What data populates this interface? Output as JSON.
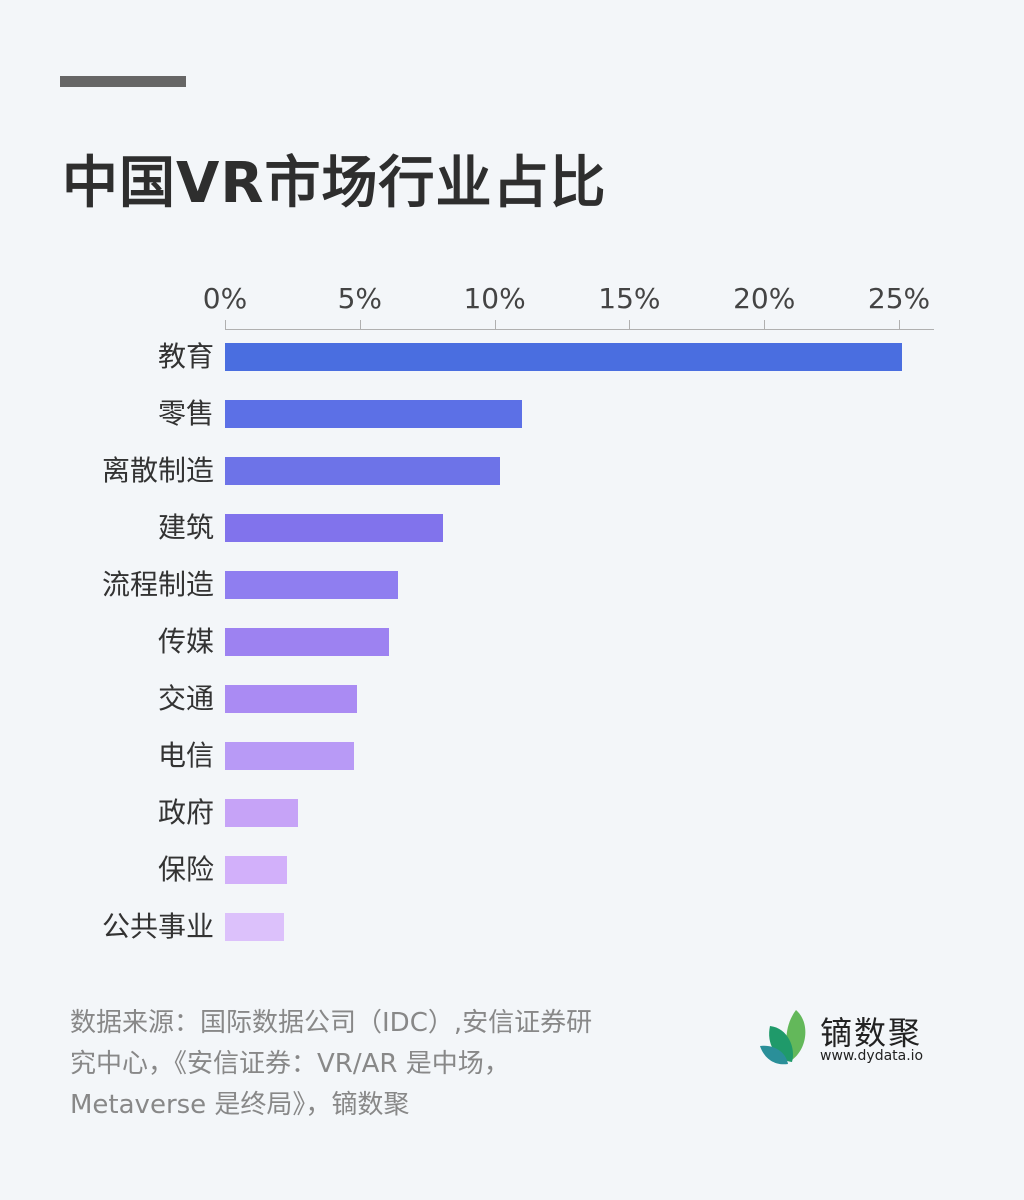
{
  "header": {
    "title": "中国VR市场行业占比"
  },
  "chart_data": {
    "type": "bar",
    "orientation": "horizontal",
    "title": "中国VR市场行业占比",
    "xlabel": "",
    "ylabel": "",
    "xlim": [
      0,
      26
    ],
    "x_ticks": [
      "0%",
      "5%",
      "10%",
      "15%",
      "20%",
      "25%"
    ],
    "x_tick_values": [
      0,
      5,
      10,
      15,
      20,
      25
    ],
    "axis_position": "top",
    "grid": false,
    "legend": "none",
    "categories": [
      "教育",
      "零售",
      "离散制造",
      "建筑",
      "流程制造",
      "传媒",
      "交通",
      "电信",
      "政府",
      "保险",
      "公共事业"
    ],
    "values": [
      25.1,
      11.0,
      10.2,
      8.1,
      6.4,
      6.1,
      4.9,
      4.8,
      2.7,
      2.3,
      2.2
    ],
    "unit": "%",
    "colors": [
      "#4a6ee0",
      "#5c70e6",
      "#6d73e8",
      "#8173ec",
      "#8f7ef0",
      "#9d82f1",
      "#aa8bf3",
      "#b89af6",
      "#c6a3f7",
      "#d2b0fa",
      "#dcc1fb"
    ]
  },
  "footer": {
    "source_text": "数据来源：国际数据公司（IDC）,安信证券研究中心，《安信证券：VR/AR 是中场，Metaverse 是终局》，镝数聚"
  },
  "logo": {
    "name": "镝数聚",
    "url": "www.dydata.io",
    "icon": "leaf-logo-icon",
    "colors": [
      "#5fb55a",
      "#1f9a6a",
      "#2a8f99"
    ]
  }
}
